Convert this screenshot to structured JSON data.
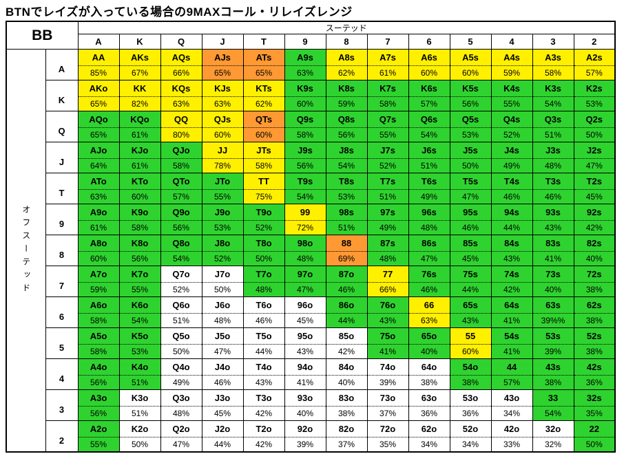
{
  "chart_data": {
    "type": "heatmap",
    "title": "BTNでレイズが入っている場合の9MAXコール・リレイズレンジ",
    "corner_label": "BB",
    "col_group_label": "スーテッド",
    "row_group_label": "オフスーテッド",
    "columns": [
      "A",
      "K",
      "Q",
      "J",
      "T",
      "9",
      "8",
      "7",
      "6",
      "5",
      "4",
      "3",
      "2"
    ],
    "colors": {
      "yellow": "#FFF000",
      "orange": "#FF9933",
      "green": "#2FD32F",
      "white": "#FFFFFF"
    },
    "rows": [
      {
        "label": "A",
        "cells": [
          {
            "hand": "AA",
            "pct": "85%",
            "color": "yellow"
          },
          {
            "hand": "AKs",
            "pct": "67%",
            "color": "yellow"
          },
          {
            "hand": "AQs",
            "pct": "66%",
            "color": "yellow"
          },
          {
            "hand": "AJs",
            "pct": "65%",
            "color": "orange"
          },
          {
            "hand": "ATs",
            "pct": "65%",
            "color": "orange"
          },
          {
            "hand": "A9s",
            "pct": "63%",
            "color": "green"
          },
          {
            "hand": "A8s",
            "pct": "62%",
            "color": "yellow"
          },
          {
            "hand": "A7s",
            "pct": "61%",
            "color": "yellow"
          },
          {
            "hand": "A6s",
            "pct": "60%",
            "color": "yellow"
          },
          {
            "hand": "A5s",
            "pct": "60%",
            "color": "yellow"
          },
          {
            "hand": "A4s",
            "pct": "59%",
            "color": "yellow"
          },
          {
            "hand": "A3s",
            "pct": "58%",
            "color": "yellow"
          },
          {
            "hand": "A2s",
            "pct": "57%",
            "color": "yellow"
          }
        ]
      },
      {
        "label": "K",
        "cells": [
          {
            "hand": "AKo",
            "pct": "65%",
            "color": "yellow"
          },
          {
            "hand": "KK",
            "pct": "82%",
            "color": "yellow"
          },
          {
            "hand": "KQs",
            "pct": "63%",
            "color": "yellow"
          },
          {
            "hand": "KJs",
            "pct": "63%",
            "color": "yellow"
          },
          {
            "hand": "KTs",
            "pct": "62%",
            "color": "yellow"
          },
          {
            "hand": "K9s",
            "pct": "60%",
            "color": "green"
          },
          {
            "hand": "K8s",
            "pct": "59%",
            "color": "green"
          },
          {
            "hand": "K7s",
            "pct": "58%",
            "color": "green"
          },
          {
            "hand": "K6s",
            "pct": "57%",
            "color": "green"
          },
          {
            "hand": "K5s",
            "pct": "56%",
            "color": "green"
          },
          {
            "hand": "K4s",
            "pct": "55%",
            "color": "green"
          },
          {
            "hand": "K3s",
            "pct": "54%",
            "color": "green"
          },
          {
            "hand": "K2s",
            "pct": "53%",
            "color": "green"
          }
        ]
      },
      {
        "label": "Q",
        "cells": [
          {
            "hand": "AQo",
            "pct": "65%",
            "color": "green"
          },
          {
            "hand": "KQo",
            "pct": "61%",
            "color": "green"
          },
          {
            "hand": "QQ",
            "pct": "80%",
            "color": "yellow"
          },
          {
            "hand": "QJs",
            "pct": "60%",
            "color": "yellow"
          },
          {
            "hand": "QTs",
            "pct": "60%",
            "color": "orange"
          },
          {
            "hand": "Q9s",
            "pct": "58%",
            "color": "green"
          },
          {
            "hand": "Q8s",
            "pct": "56%",
            "color": "green"
          },
          {
            "hand": "Q7s",
            "pct": "55%",
            "color": "green"
          },
          {
            "hand": "Q6s",
            "pct": "54%",
            "color": "green"
          },
          {
            "hand": "Q5s",
            "pct": "53%",
            "color": "green"
          },
          {
            "hand": "Q4s",
            "pct": "52%",
            "color": "green"
          },
          {
            "hand": "Q3s",
            "pct": "51%",
            "color": "green"
          },
          {
            "hand": "Q2s",
            "pct": "50%",
            "color": "green"
          }
        ]
      },
      {
        "label": "J",
        "cells": [
          {
            "hand": "AJo",
            "pct": "64%",
            "color": "green"
          },
          {
            "hand": "KJo",
            "pct": "61%",
            "color": "green"
          },
          {
            "hand": "QJo",
            "pct": "58%",
            "color": "green"
          },
          {
            "hand": "JJ",
            "pct": "78%",
            "color": "yellow"
          },
          {
            "hand": "JTs",
            "pct": "58%",
            "color": "yellow"
          },
          {
            "hand": "J9s",
            "pct": "56%",
            "color": "green"
          },
          {
            "hand": "J8s",
            "pct": "54%",
            "color": "green"
          },
          {
            "hand": "J7s",
            "pct": "52%",
            "color": "green"
          },
          {
            "hand": "J6s",
            "pct": "51%",
            "color": "green"
          },
          {
            "hand": "J5s",
            "pct": "50%",
            "color": "green"
          },
          {
            "hand": "J4s",
            "pct": "49%",
            "color": "green"
          },
          {
            "hand": "J3s",
            "pct": "48%",
            "color": "green"
          },
          {
            "hand": "J2s",
            "pct": "47%",
            "color": "green"
          }
        ]
      },
      {
        "label": "T",
        "cells": [
          {
            "hand": "ATo",
            "pct": "63%",
            "color": "green"
          },
          {
            "hand": "KTo",
            "pct": "60%",
            "color": "green"
          },
          {
            "hand": "QTo",
            "pct": "57%",
            "color": "green"
          },
          {
            "hand": "JTo",
            "pct": "55%",
            "color": "green"
          },
          {
            "hand": "TT",
            "pct": "75%",
            "color": "yellow"
          },
          {
            "hand": "T9s",
            "pct": "54%",
            "color": "green"
          },
          {
            "hand": "T8s",
            "pct": "53%",
            "color": "green"
          },
          {
            "hand": "T7s",
            "pct": "51%",
            "color": "green"
          },
          {
            "hand": "T6s",
            "pct": "49%",
            "color": "green"
          },
          {
            "hand": "T5s",
            "pct": "47%",
            "color": "green"
          },
          {
            "hand": "T4s",
            "pct": "46%",
            "color": "green"
          },
          {
            "hand": "T3s",
            "pct": "46%",
            "color": "green"
          },
          {
            "hand": "T2s",
            "pct": "45%",
            "color": "green"
          }
        ]
      },
      {
        "label": "9",
        "cells": [
          {
            "hand": "A9o",
            "pct": "61%",
            "color": "green"
          },
          {
            "hand": "K9o",
            "pct": "58%",
            "color": "green"
          },
          {
            "hand": "Q9o",
            "pct": "56%",
            "color": "green"
          },
          {
            "hand": "J9o",
            "pct": "53%",
            "color": "green"
          },
          {
            "hand": "T9o",
            "pct": "52%",
            "color": "green"
          },
          {
            "hand": "99",
            "pct": "72%",
            "color": "yellow"
          },
          {
            "hand": "98s",
            "pct": "51%",
            "color": "green"
          },
          {
            "hand": "97s",
            "pct": "49%",
            "color": "green"
          },
          {
            "hand": "96s",
            "pct": "48%",
            "color": "green"
          },
          {
            "hand": "95s",
            "pct": "46%",
            "color": "green"
          },
          {
            "hand": "94s",
            "pct": "44%",
            "color": "green"
          },
          {
            "hand": "93s",
            "pct": "43%",
            "color": "green"
          },
          {
            "hand": "92s",
            "pct": "42%",
            "color": "green"
          }
        ]
      },
      {
        "label": "8",
        "cells": [
          {
            "hand": "A8o",
            "pct": "60%",
            "color": "green"
          },
          {
            "hand": "K8o",
            "pct": "56%",
            "color": "green"
          },
          {
            "hand": "Q8o",
            "pct": "54%",
            "color": "green"
          },
          {
            "hand": "J8o",
            "pct": "52%",
            "color": "green"
          },
          {
            "hand": "T8o",
            "pct": "50%",
            "color": "green"
          },
          {
            "hand": "98o",
            "pct": "48%",
            "color": "green"
          },
          {
            "hand": "88",
            "pct": "69%",
            "color": "orange"
          },
          {
            "hand": "87s",
            "pct": "48%",
            "color": "green"
          },
          {
            "hand": "86s",
            "pct": "47%",
            "color": "green"
          },
          {
            "hand": "85s",
            "pct": "45%",
            "color": "green"
          },
          {
            "hand": "84s",
            "pct": "43%",
            "color": "green"
          },
          {
            "hand": "83s",
            "pct": "41%",
            "color": "green"
          },
          {
            "hand": "82s",
            "pct": "40%",
            "color": "green"
          }
        ]
      },
      {
        "label": "7",
        "cells": [
          {
            "hand": "A7o",
            "pct": "59%",
            "color": "green"
          },
          {
            "hand": "K7o",
            "pct": "55%",
            "color": "green"
          },
          {
            "hand": "Q7o",
            "pct": "52%",
            "color": "white"
          },
          {
            "hand": "J7o",
            "pct": "50%",
            "color": "white"
          },
          {
            "hand": "T7o",
            "pct": "48%",
            "color": "green"
          },
          {
            "hand": "97o",
            "pct": "47%",
            "color": "green"
          },
          {
            "hand": "87o",
            "pct": "46%",
            "color": "green"
          },
          {
            "hand": "77",
            "pct": "66%",
            "color": "yellow"
          },
          {
            "hand": "76s",
            "pct": "46%",
            "color": "green"
          },
          {
            "hand": "75s",
            "pct": "44%",
            "color": "green"
          },
          {
            "hand": "74s",
            "pct": "42%",
            "color": "green"
          },
          {
            "hand": "73s",
            "pct": "40%",
            "color": "green"
          },
          {
            "hand": "72s",
            "pct": "38%",
            "color": "green"
          }
        ]
      },
      {
        "label": "6",
        "cells": [
          {
            "hand": "A6o",
            "pct": "58%",
            "color": "green"
          },
          {
            "hand": "K6o",
            "pct": "54%",
            "color": "green"
          },
          {
            "hand": "Q6o",
            "pct": "51%",
            "color": "white"
          },
          {
            "hand": "J6o",
            "pct": "48%",
            "color": "white"
          },
          {
            "hand": "T6o",
            "pct": "46%",
            "color": "white"
          },
          {
            "hand": "96o",
            "pct": "45%",
            "color": "white"
          },
          {
            "hand": "86o",
            "pct": "44%",
            "color": "green"
          },
          {
            "hand": "76o",
            "pct": "43%",
            "color": "green"
          },
          {
            "hand": "66",
            "pct": "63%",
            "color": "yellow"
          },
          {
            "hand": "65s",
            "pct": "43%",
            "color": "green"
          },
          {
            "hand": "64s",
            "pct": "41%",
            "color": "green"
          },
          {
            "hand": "63s",
            "pct": "39%%",
            "color": "green"
          },
          {
            "hand": "62s",
            "pct": "38%",
            "color": "green"
          }
        ]
      },
      {
        "label": "5",
        "cells": [
          {
            "hand": "A5o",
            "pct": "58%",
            "color": "green"
          },
          {
            "hand": "K5o",
            "pct": "53%",
            "color": "green"
          },
          {
            "hand": "Q5o",
            "pct": "50%",
            "color": "white"
          },
          {
            "hand": "J5o",
            "pct": "47%",
            "color": "white"
          },
          {
            "hand": "T5o",
            "pct": "44%",
            "color": "white"
          },
          {
            "hand": "95o",
            "pct": "43%",
            "color": "white"
          },
          {
            "hand": "85o",
            "pct": "42%",
            "color": "white"
          },
          {
            "hand": "75o",
            "pct": "41%",
            "color": "green"
          },
          {
            "hand": "65o",
            "pct": "40%",
            "color": "green"
          },
          {
            "hand": "55",
            "pct": "60%",
            "color": "yellow"
          },
          {
            "hand": "54s",
            "pct": "41%",
            "color": "green"
          },
          {
            "hand": "53s",
            "pct": "39%",
            "color": "green"
          },
          {
            "hand": "52s",
            "pct": "38%",
            "color": "green"
          }
        ]
      },
      {
        "label": "4",
        "cells": [
          {
            "hand": "A4o",
            "pct": "56%",
            "color": "green"
          },
          {
            "hand": "K4o",
            "pct": "51%",
            "color": "green"
          },
          {
            "hand": "Q4o",
            "pct": "49%",
            "color": "white"
          },
          {
            "hand": "J4o",
            "pct": "46%",
            "color": "white"
          },
          {
            "hand": "T4o",
            "pct": "43%",
            "color": "white"
          },
          {
            "hand": "94o",
            "pct": "41%",
            "color": "white"
          },
          {
            "hand": "84o",
            "pct": "40%",
            "color": "white"
          },
          {
            "hand": "74o",
            "pct": "39%",
            "color": "white"
          },
          {
            "hand": "64o",
            "pct": "38%",
            "color": "white"
          },
          {
            "hand": "54o",
            "pct": "38%",
            "color": "green"
          },
          {
            "hand": "44",
            "pct": "57%",
            "color": "green"
          },
          {
            "hand": "43s",
            "pct": "38%",
            "color": "green"
          },
          {
            "hand": "42s",
            "pct": "36%",
            "color": "green"
          }
        ]
      },
      {
        "label": "3",
        "cells": [
          {
            "hand": "A3o",
            "pct": "56%",
            "color": "green"
          },
          {
            "hand": "K3o",
            "pct": "51%",
            "color": "white"
          },
          {
            "hand": "Q3o",
            "pct": "48%",
            "color": "white"
          },
          {
            "hand": "J3o",
            "pct": "45%",
            "color": "white"
          },
          {
            "hand": "T3o",
            "pct": "42%",
            "color": "white"
          },
          {
            "hand": "93o",
            "pct": "40%",
            "color": "white"
          },
          {
            "hand": "83o",
            "pct": "38%",
            "color": "white"
          },
          {
            "hand": "73o",
            "pct": "37%",
            "color": "white"
          },
          {
            "hand": "63o",
            "pct": "36%",
            "color": "white"
          },
          {
            "hand": "53o",
            "pct": "36%",
            "color": "white"
          },
          {
            "hand": "43o",
            "pct": "34%",
            "color": "white"
          },
          {
            "hand": "33",
            "pct": "54%",
            "color": "green"
          },
          {
            "hand": "32s",
            "pct": "35%",
            "color": "green"
          }
        ]
      },
      {
        "label": "2",
        "cells": [
          {
            "hand": "A2o",
            "pct": "55%",
            "color": "green"
          },
          {
            "hand": "K2o",
            "pct": "50%",
            "color": "white"
          },
          {
            "hand": "Q2o",
            "pct": "47%",
            "color": "white"
          },
          {
            "hand": "J2o",
            "pct": "44%",
            "color": "white"
          },
          {
            "hand": "T2o",
            "pct": "42%",
            "color": "white"
          },
          {
            "hand": "92o",
            "pct": "39%",
            "color": "white"
          },
          {
            "hand": "82o",
            "pct": "37%",
            "color": "white"
          },
          {
            "hand": "72o",
            "pct": "35%",
            "color": "white"
          },
          {
            "hand": "62o",
            "pct": "34%",
            "color": "white"
          },
          {
            "hand": "52o",
            "pct": "34%",
            "color": "white"
          },
          {
            "hand": "42o",
            "pct": "33%",
            "color": "white"
          },
          {
            "hand": "32o",
            "pct": "32%",
            "color": "white"
          },
          {
            "hand": "22",
            "pct": "50%",
            "color": "green"
          }
        ]
      }
    ]
  }
}
